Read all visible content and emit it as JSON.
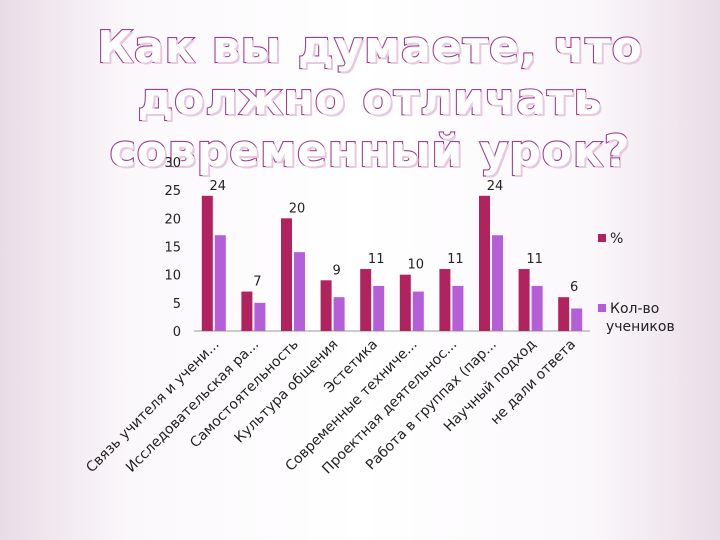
{
  "title": "Как вы думаете, что должно отличать современный урок?",
  "chart_data": {
    "type": "bar",
    "categories": [
      "Связь учителя и учени...",
      "Исследовательская ра...",
      "Самостоятельность",
      "Культура общения",
      "Эстетика",
      "Современные техниче...",
      "Проектная деятельнос...",
      "Работа в группах (пар...",
      "Научный подход",
      "не дали ответа"
    ],
    "series": [
      {
        "name": "%",
        "values": [
          24,
          7,
          20,
          9,
          11,
          10,
          11,
          24,
          11,
          6
        ],
        "color": "#b0235e"
      },
      {
        "name": "Кол-во учеников",
        "values": [
          17,
          5,
          14,
          6,
          8,
          7,
          8,
          17,
          8,
          4
        ],
        "color": "#b45ed8"
      }
    ],
    "data_labels": [
      24,
      7,
      20,
      9,
      11,
      10,
      11,
      24,
      11,
      6
    ],
    "yticks": [
      0,
      5,
      10,
      15,
      20,
      25,
      30
    ],
    "ylim": [
      0,
      30
    ],
    "legend": "right",
    "grid": false
  }
}
